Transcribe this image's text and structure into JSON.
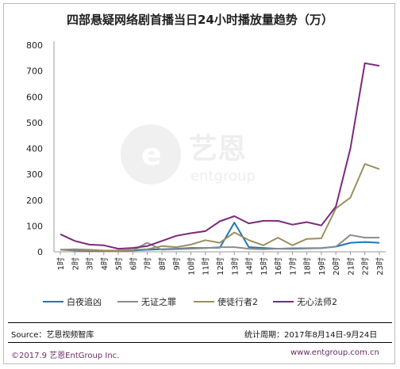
{
  "chart_data": {
    "type": "line",
    "title": "四部悬疑网络剧首播当日24小时播放量趋势（万）",
    "categories": [
      "1时",
      "2时",
      "3时",
      "4时",
      "5时",
      "6时",
      "7时",
      "8时",
      "9时",
      "10时",
      "11时",
      "12时",
      "13时",
      "14时",
      "15时",
      "16时",
      "17时",
      "18时",
      "19时",
      "20时",
      "21时",
      "22时",
      "23时"
    ],
    "ylim": [
      0,
      800
    ],
    "yticks": [
      0,
      100,
      200,
      300,
      400,
      500,
      600,
      700,
      800
    ],
    "grid": false,
    "legend_position": "bottom",
    "series": [
      {
        "name": "白夜追凶",
        "color": "#1f77b4",
        "values": [
          8,
          5,
          4,
          3,
          3,
          5,
          8,
          10,
          12,
          15,
          15,
          16,
          113,
          18,
          15,
          12,
          12,
          13,
          14,
          20,
          35,
          38,
          35
        ]
      },
      {
        "name": "无证之罪",
        "color": "#8c8c8c",
        "values": [
          8,
          7,
          6,
          4,
          4,
          6,
          35,
          8,
          10,
          12,
          14,
          18,
          18,
          12,
          10,
          12,
          14,
          14,
          15,
          20,
          65,
          55,
          55
        ]
      },
      {
        "name": "使徒行者2",
        "color": "#9a8f60",
        "values": [
          8,
          10,
          8,
          5,
          5,
          8,
          10,
          22,
          18,
          28,
          45,
          35,
          75,
          45,
          25,
          55,
          25,
          50,
          52,
          168,
          210,
          340,
          320
        ]
      },
      {
        "name": "无心法师2",
        "color": "#7b2a7b",
        "values": [
          68,
          42,
          28,
          25,
          12,
          15,
          22,
          42,
          62,
          72,
          80,
          118,
          138,
          110,
          120,
          120,
          105,
          115,
          102,
          175,
          400,
          730,
          720
        ]
      }
    ]
  },
  "footer": {
    "source": "Source：艺恩视频智库",
    "period": "统计周期：2017年8月14日-9月24日",
    "copyright": "©2017.9  艺恩EntGroup Inc.",
    "website": "www.entgroup.com.cn"
  },
  "watermark": {
    "brand_cn": "艺恩",
    "brand_en": "entgroup"
  }
}
